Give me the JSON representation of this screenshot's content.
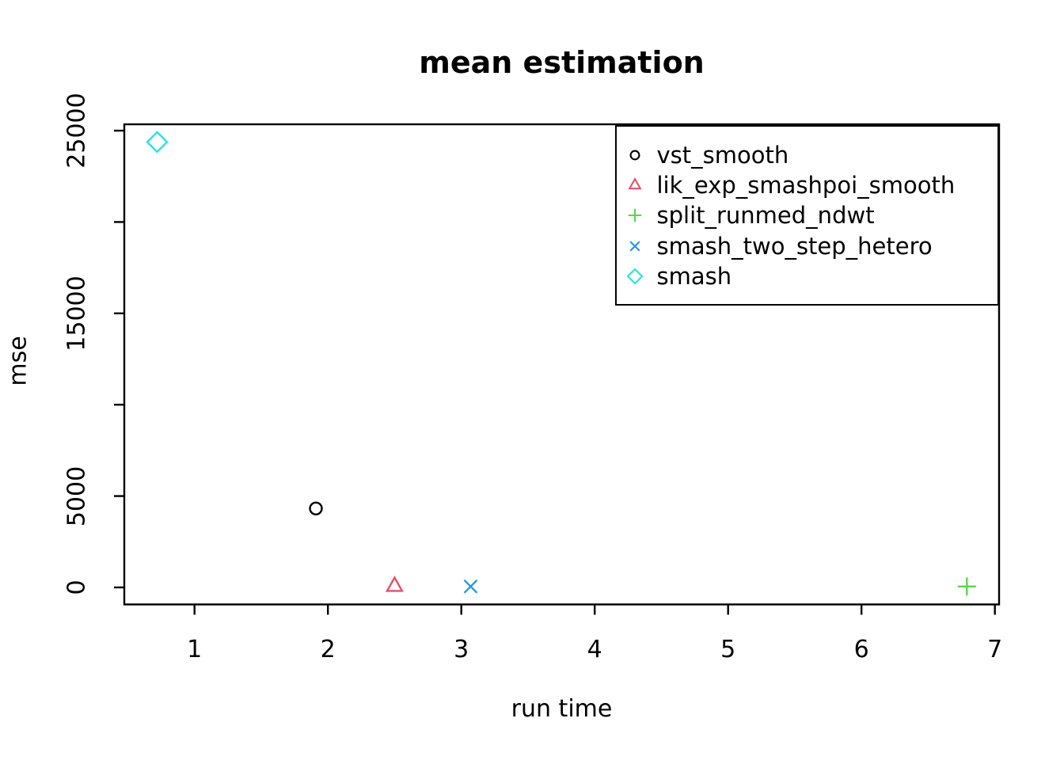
{
  "chart_data": {
    "type": "scatter",
    "title": "mean estimation",
    "xlabel": "run time",
    "ylabel": "mse",
    "xlim": [
      0.4736,
      7.0315
    ],
    "ylim": [
      -932,
      25348
    ],
    "x_ticks": {
      "values": [
        1,
        2,
        3,
        4,
        5,
        6,
        7
      ],
      "labels": [
        "1",
        "2",
        "3",
        "4",
        "5",
        "6",
        "7"
      ]
    },
    "y_ticks": {
      "values": [
        0,
        5000,
        10000,
        15000,
        20000,
        25000
      ],
      "labels": [
        "0",
        "5000",
        "",
        "15000",
        "",
        "25000"
      ]
    },
    "grid": false,
    "legend_position": "topright",
    "axis_color": "#000000",
    "background_color": "#ffffff",
    "series": [
      {
        "name": "vst_smooth",
        "marker": "circle",
        "color": "#000000",
        "points": [
          [
            1.91,
            4320
          ]
        ]
      },
      {
        "name": "lik_exp_smashpoi_smooth",
        "marker": "triangle",
        "color": "#DF536B",
        "points": [
          [
            2.5,
            60
          ]
        ]
      },
      {
        "name": "split_runmed_ndwt",
        "marker": "plus",
        "color": "#61D04F",
        "points": [
          [
            6.79,
            50
          ]
        ]
      },
      {
        "name": "smash_two_step_hetero",
        "marker": "x",
        "color": "#2297E6",
        "points": [
          [
            3.07,
            50
          ]
        ]
      },
      {
        "name": "smash",
        "marker": "diamond",
        "color": "#28E2E5",
        "points": [
          [
            0.72,
            24380
          ]
        ]
      }
    ]
  }
}
